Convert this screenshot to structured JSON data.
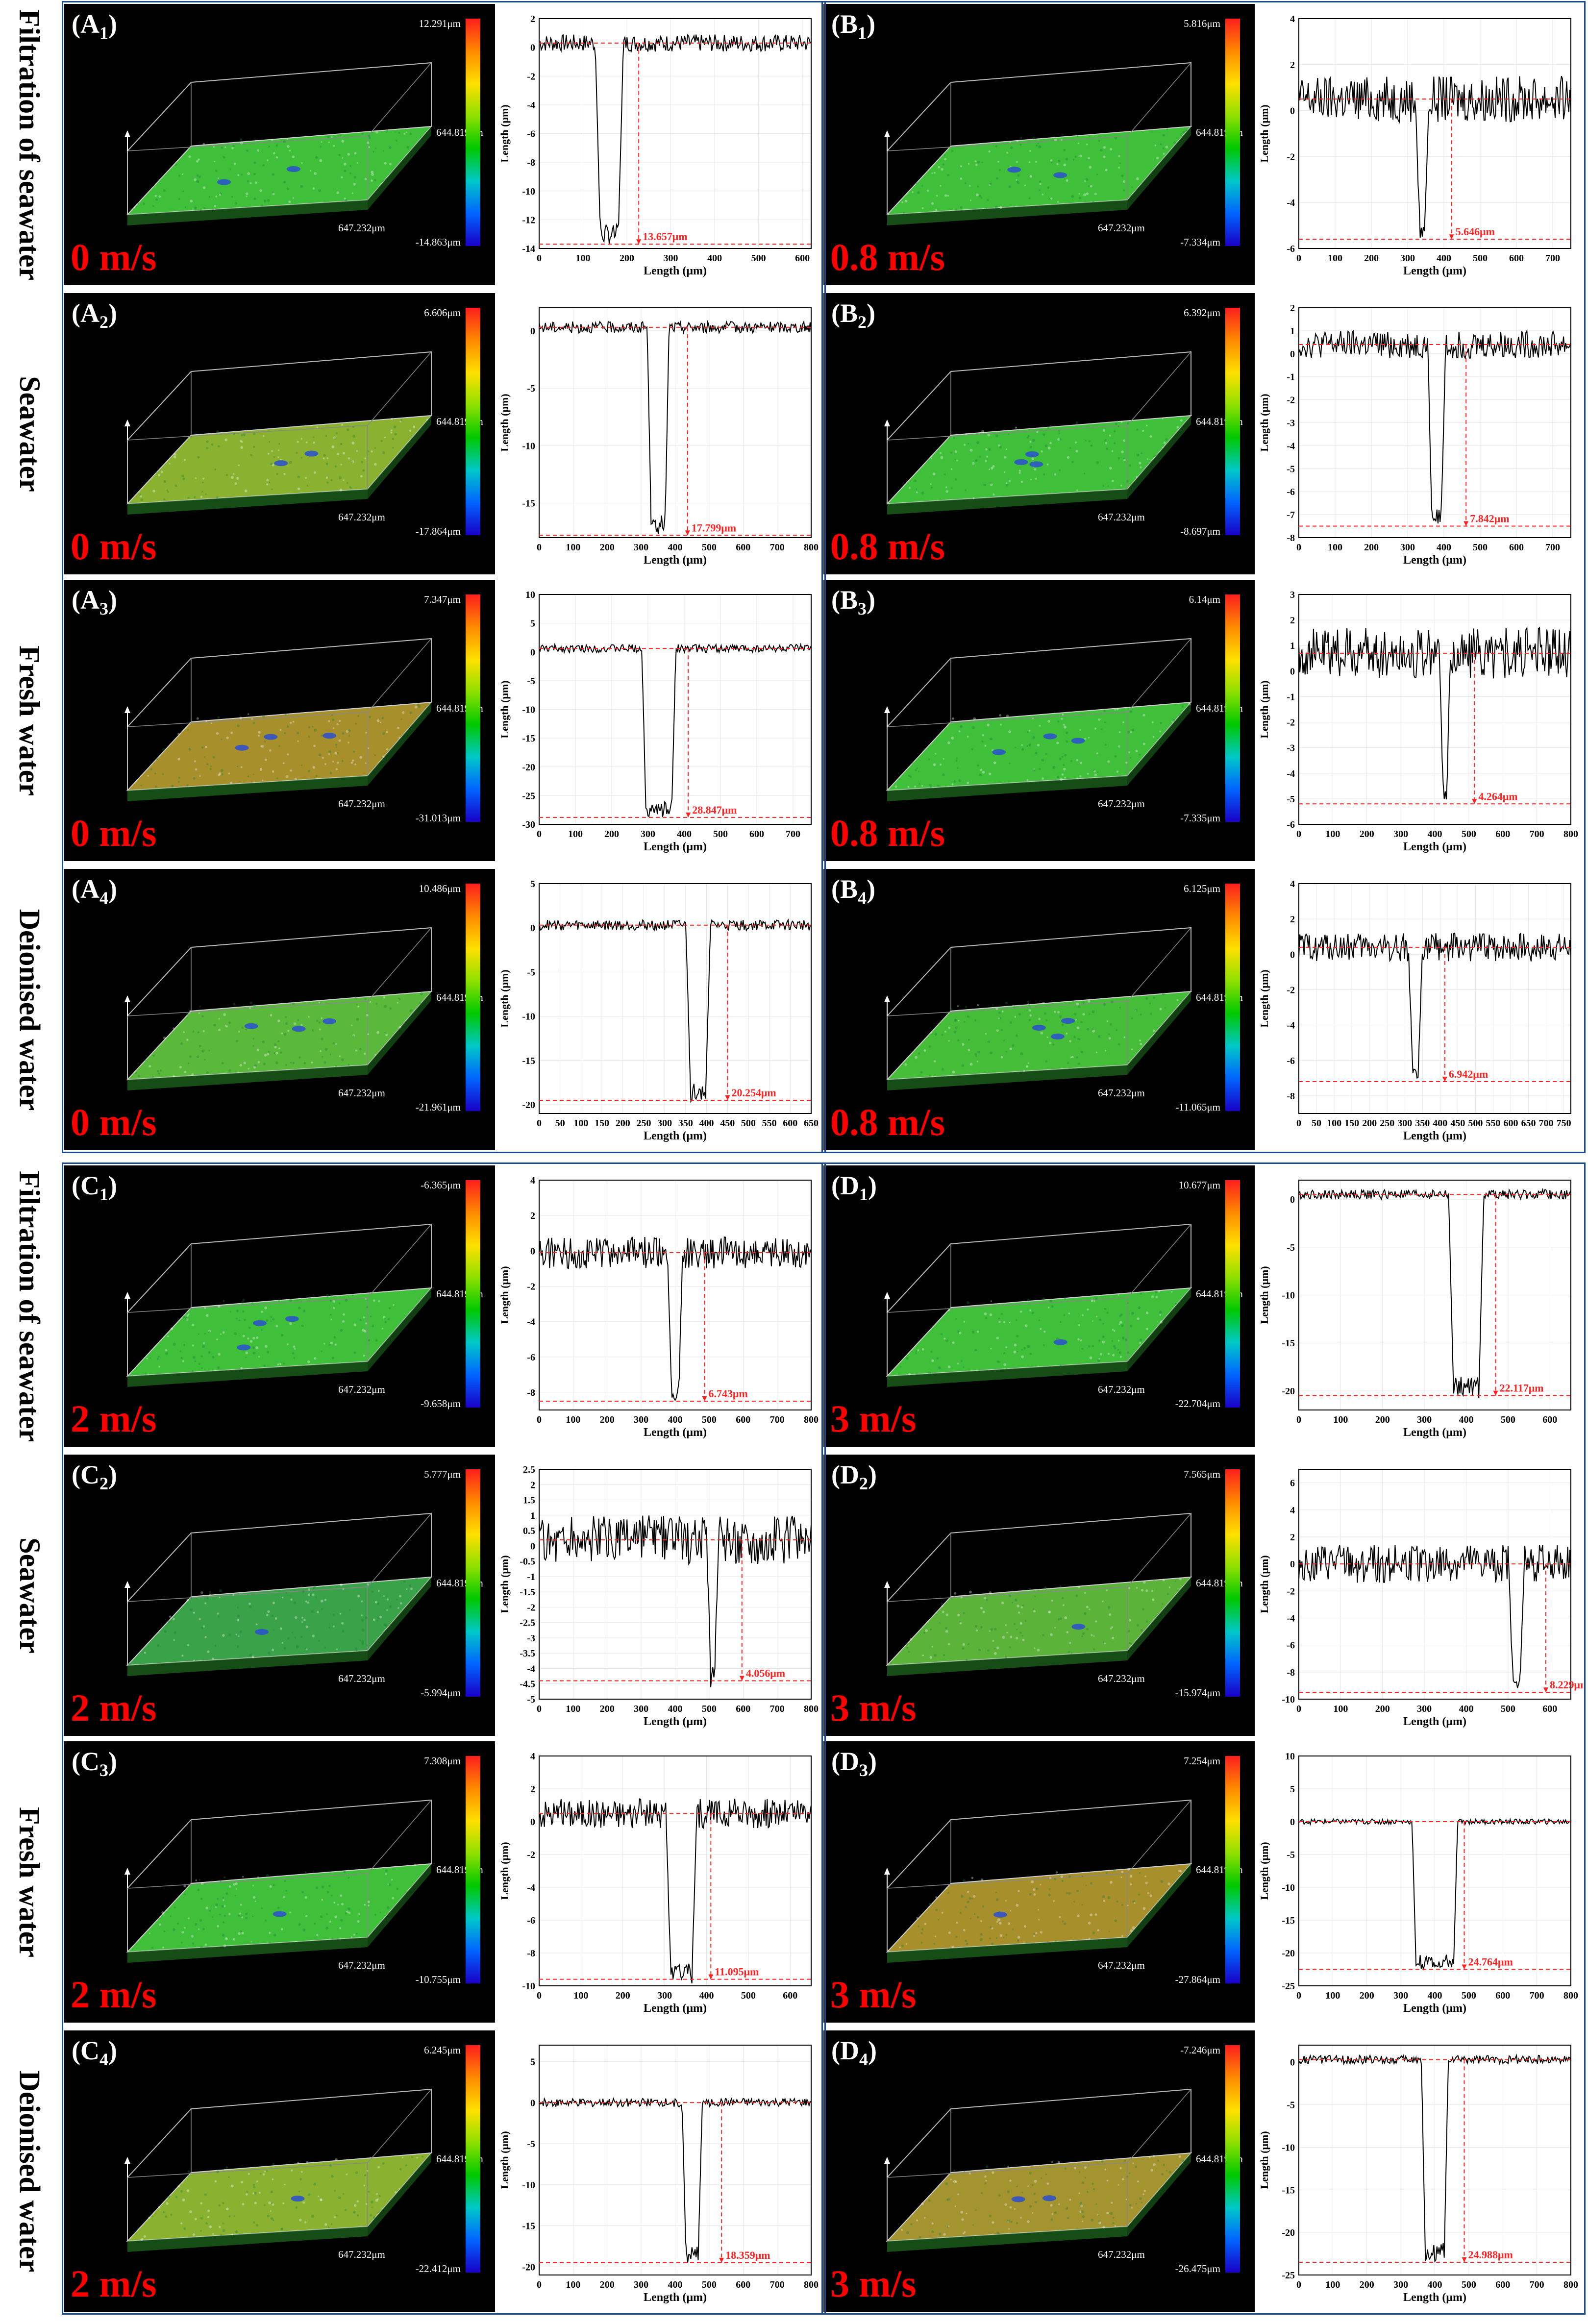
{
  "rows": [
    {
      "label": "Filtration of seawater"
    },
    {
      "label": "Seawater"
    },
    {
      "label": "Fresh water"
    },
    {
      "label": "Deionised water"
    },
    {
      "label": "Filtration of seawater"
    },
    {
      "label": "Seawater"
    },
    {
      "label": "Fresh water"
    },
    {
      "label": "Deionised water"
    }
  ],
  "panels": [
    {
      "id": "A",
      "sub": "1",
      "speed": "0 m/s",
      "cmax": "12.291μm",
      "cmin": "-14.863μm",
      "dimY": "644.819μm",
      "dimX": "647.232μm",
      "surface": "#3fbf3a",
      "mark": "13.657μm",
      "xmax": 620,
      "xstep": 100,
      "ylo": -14,
      "yhi": 2,
      "ystep": 2,
      "base": 0.3,
      "depth": -13.7,
      "pos": 160,
      "width": 40,
      "noise": 0.6,
      "yl": "Length (μm)",
      "xl": "Length (μm)"
    },
    {
      "id": "B",
      "sub": "1",
      "speed": "0.8 m/s",
      "cmax": "5.816μm",
      "cmin": "-7.334μm",
      "dimY": "644.819μm",
      "dimX": "647.232μm",
      "surface": "#3fbf3a",
      "mark": "5.646μm",
      "xmax": 750,
      "xstep": 100,
      "ylo": -6,
      "yhi": 4,
      "ystep": 2,
      "base": 0.5,
      "depth": -5.6,
      "pos": 340,
      "width": 12,
      "noise": 1.0,
      "yl": "Length (μm)",
      "xl": "Length (μm)"
    },
    {
      "id": "A",
      "sub": "2",
      "speed": "0 m/s",
      "cmax": "6.606μm",
      "cmin": "-17.864μm",
      "dimY": "644.819μm",
      "dimX": "647.232μm",
      "surface": "#8ab230",
      "mark": "17.799μm",
      "xmax": 800,
      "xstep": 100,
      "ylo": -18,
      "yhi": 2,
      "ystep": 5,
      "base": 0.3,
      "depth": -17.8,
      "pos": 350,
      "width": 40,
      "noise": 0.5,
      "yl": "Length (μm)",
      "xl": "Length (μm)"
    },
    {
      "id": "B",
      "sub": "2",
      "speed": "0.8 m/s",
      "cmax": "6.392μm",
      "cmin": "-8.697μm",
      "dimY": "644.819μm",
      "dimX": "647.232μm",
      "surface": "#3fbf3a",
      "mark": "7.842μm",
      "xmax": 750,
      "xstep": 100,
      "ylo": -8,
      "yhi": 2,
      "ystep": 1,
      "base": 0.4,
      "depth": -7.5,
      "pos": 380,
      "width": 25,
      "noise": 0.6,
      "yl": "Length (μm)",
      "xl": "Length (μm)"
    },
    {
      "id": "A",
      "sub": "3",
      "speed": "0 m/s",
      "cmax": "7.347μm",
      "cmin": "-31.013μm",
      "dimY": "644.819μm",
      "dimX": "647.232μm",
      "surface": "#a7902c",
      "mark": "28.847μm",
      "xmax": 750,
      "xstep": 100,
      "ylo": -30,
      "yhi": 10,
      "ystep": 5,
      "base": 0.6,
      "depth": -28.8,
      "pos": 330,
      "width": 70,
      "noise": 0.7,
      "yl": "Length (μm)",
      "xl": "Length (μm)"
    },
    {
      "id": "B",
      "sub": "3",
      "speed": "0.8 m/s",
      "cmax": "6.14μm",
      "cmin": "-7.335μm",
      "dimY": "644.819μm",
      "dimX": "647.232μm",
      "surface": "#3fbf3a",
      "mark": "4.264μm",
      "xmax": 800,
      "xstep": 100,
      "ylo": -6,
      "yhi": 3,
      "ystep": 1,
      "base": 0.7,
      "depth": -5.2,
      "pos": 430,
      "width": 8,
      "noise": 1.0,
      "yl": "Length (μm)",
      "xl": "Length (μm)"
    },
    {
      "id": "A",
      "sub": "4",
      "speed": "0 m/s",
      "cmax": "10.486μm",
      "cmin": "-21.961μm",
      "dimY": "644.819μm",
      "dimX": "647.232μm",
      "surface": "#5ab83a",
      "mark": "20.254μm",
      "xmax": 650,
      "xstep": 50,
      "ylo": -21,
      "yhi": 5,
      "ystep": 5,
      "base": 0.3,
      "depth": -19.5,
      "pos": 380,
      "width": 35,
      "noise": 0.6,
      "yl": "Length (μm)",
      "xl": "Length (μm)"
    },
    {
      "id": "B",
      "sub": "4",
      "speed": "0.8 m/s",
      "cmax": "6.125μm",
      "cmin": "-11.065μm",
      "dimY": "644.819μm",
      "dimX": "647.232μm",
      "surface": "#46bd38",
      "mark": "6.942μm",
      "xmax": 770,
      "xstep": 50,
      "ylo": -9,
      "yhi": 4,
      "ystep": 2,
      "base": 0.4,
      "depth": -7.2,
      "pos": 330,
      "width": 15,
      "noise": 0.8,
      "yl": "Length (μm)",
      "xl": "Length (μm)"
    },
    {
      "id": "C",
      "sub": "1",
      "speed": "2 m/s",
      "cmax": "-6.365μm",
      "cmin": "-9.658μm",
      "dimY": "644.819μm",
      "dimX": "647.232μm",
      "surface": "#3fbf3a",
      "mark": "6.743μm",
      "xmax": 800,
      "xstep": 100,
      "ylo": -9,
      "yhi": 4,
      "ystep": 2,
      "base": -0.1,
      "depth": -8.5,
      "pos": 400,
      "width": 20,
      "noise": 0.9,
      "yl": "Length (μm)",
      "xl": "Length (μm)"
    },
    {
      "id": "D",
      "sub": "1",
      "speed": "3 m/s",
      "cmax": "10.677μm",
      "cmin": "-22.704μm",
      "dimY": "644.819μm",
      "dimX": "647.232μm",
      "surface": "#3fbf3a",
      "mark": "22.117μm",
      "xmax": 650,
      "xstep": 100,
      "ylo": -22,
      "yhi": 2,
      "ystep": 5,
      "base": 0.5,
      "depth": -20.5,
      "pos": 400,
      "width": 60,
      "noise": 0.5,
      "yl": "Length (μm)",
      "xl": "Length (μm)"
    },
    {
      "id": "C",
      "sub": "2",
      "speed": "2 m/s",
      "cmax": "5.777μm",
      "cmin": "-5.994μm",
      "dimY": "644.819μm",
      "dimX": "647.232μm",
      "surface": "#3aa248",
      "mark": "4.056μm",
      "xmax": 800,
      "xstep": 100,
      "ylo": -5,
      "yhi": 2.5,
      "ystep": 0.5,
      "base": 0.2,
      "depth": -4.4,
      "pos": 510,
      "width": 10,
      "noise": 0.8,
      "yl": "Length (μm)",
      "xl": "Length (μm)"
    },
    {
      "id": "D",
      "sub": "2",
      "speed": "3 m/s",
      "cmax": "7.565μm",
      "cmin": "-15.974μm",
      "dimY": "644.819μm",
      "dimX": "647.232μm",
      "surface": "#5cb33a",
      "mark": "8.229μm",
      "xmax": 650,
      "xstep": 100,
      "ylo": -10,
      "yhi": 7,
      "ystep": 2,
      "base": 0.0,
      "depth": -9.5,
      "pos": 520,
      "width": 14,
      "noise": 1.4,
      "yl": "Length (μm)",
      "xl": "Length (μm)"
    },
    {
      "id": "C",
      "sub": "3",
      "speed": "2 m/s",
      "cmax": "7.308μm",
      "cmin": "-10.755μm",
      "dimY": "644.819μm",
      "dimX": "647.232μm",
      "surface": "#3fbf3a",
      "mark": "11.095μm",
      "xmax": 650,
      "xstep": 100,
      "ylo": -10,
      "yhi": 4,
      "ystep": 2,
      "base": 0.5,
      "depth": -9.6,
      "pos": 340,
      "width": 50,
      "noise": 0.9,
      "yl": "Length (μm)",
      "xl": "Length (μm)"
    },
    {
      "id": "D",
      "sub": "3",
      "speed": "3 m/s",
      "cmax": "7.254μm",
      "cmin": "-27.864μm",
      "dimY": "644.819μm",
      "dimX": "647.232μm",
      "surface": "#a7902c",
      "mark": "24.764μm",
      "xmax": 800,
      "xstep": 100,
      "ylo": -25,
      "yhi": 10,
      "ystep": 5,
      "base": 0.0,
      "depth": -22.5,
      "pos": 400,
      "width": 110,
      "noise": 0.4,
      "yl": "Length (μm)",
      "xl": "Length (μm)"
    },
    {
      "id": "C",
      "sub": "4",
      "speed": "2 m/s",
      "cmax": "6.245μm",
      "cmin": "-22.412μm",
      "dimY": "644.819μm",
      "dimX": "647.232μm",
      "surface": "#8ab230",
      "mark": "18.359μm",
      "xmax": 800,
      "xstep": 100,
      "ylo": -21,
      "yhi": 7,
      "ystep": 5,
      "base": 0.0,
      "depth": -19.5,
      "pos": 450,
      "width": 35,
      "noise": 0.5,
      "yl": "Length (μm)",
      "xl": "Length (μm)"
    },
    {
      "id": "D",
      "sub": "4",
      "speed": "3 m/s",
      "cmax": "-7.246μm",
      "cmin": "-26.475μm",
      "dimY": "644.819μm",
      "dimX": "647.232μm",
      "surface": "#a49430",
      "mark": "24.988μm",
      "xmax": 800,
      "xstep": 100,
      "ylo": -25,
      "yhi": 2,
      "ystep": 5,
      "base": 0.3,
      "depth": -23.5,
      "pos": 400,
      "width": 55,
      "noise": 0.5,
      "yl": "Length (μm)",
      "xl": "Length (μm)"
    }
  ],
  "chart_data": [
    {
      "type": "line",
      "title": "(A1) profile",
      "xlabel": "Length (μm)",
      "ylabel": "Length (μm)",
      "xlim": [
        0,
        620
      ],
      "ylim": [
        -14,
        2
      ],
      "annotation": "13.657μm"
    },
    {
      "type": "line",
      "title": "(B1) profile",
      "xlabel": "Length (μm)",
      "ylabel": "Length (μm)",
      "xlim": [
        0,
        750
      ],
      "ylim": [
        -6,
        4
      ],
      "annotation": "5.646μm"
    },
    {
      "type": "line",
      "title": "(A2) profile",
      "xlabel": "Length (μm)",
      "ylabel": "Length (μm)",
      "xlim": [
        0,
        800
      ],
      "ylim": [
        -18,
        2
      ],
      "annotation": "17.799μm"
    },
    {
      "type": "line",
      "title": "(B2) profile",
      "xlabel": "Length (μm)",
      "ylabel": "Length (μm)",
      "xlim": [
        0,
        750
      ],
      "ylim": [
        -8,
        2
      ],
      "annotation": "7.842μm"
    },
    {
      "type": "line",
      "title": "(A3) profile",
      "xlabel": "Length (μm)",
      "ylabel": "Length (μm)",
      "xlim": [
        0,
        750
      ],
      "ylim": [
        -30,
        10
      ],
      "annotation": "28.847μm"
    },
    {
      "type": "line",
      "title": "(B3) profile",
      "xlabel": "Length (μm)",
      "ylabel": "Length (μm)",
      "xlim": [
        0,
        800
      ],
      "ylim": [
        -6,
        3
      ],
      "annotation": "4.264μm"
    },
    {
      "type": "line",
      "title": "(A4) profile",
      "xlabel": "Length (μm)",
      "ylabel": "Length (μm)",
      "xlim": [
        0,
        650
      ],
      "ylim": [
        -21,
        5
      ],
      "annotation": "20.254μm"
    },
    {
      "type": "line",
      "title": "(B4) profile",
      "xlabel": "Length (μm)",
      "ylabel": "Length (μm)",
      "xlim": [
        0,
        770
      ],
      "ylim": [
        -9,
        4
      ],
      "annotation": "6.942μm"
    },
    {
      "type": "line",
      "title": "(C1) profile",
      "xlabel": "Length (μm)",
      "ylabel": "Length (μm)",
      "xlim": [
        0,
        800
      ],
      "ylim": [
        -9,
        4
      ],
      "annotation": "6.743μm"
    },
    {
      "type": "line",
      "title": "(D1) profile",
      "xlabel": "Length (μm)",
      "ylabel": "Length (μm)",
      "xlim": [
        0,
        650
      ],
      "ylim": [
        -22,
        2
      ],
      "annotation": "22.117μm"
    },
    {
      "type": "line",
      "title": "(C2) profile",
      "xlabel": "Length (μm)",
      "ylabel": "Length (μm)",
      "xlim": [
        0,
        800
      ],
      "ylim": [
        -5,
        2.5
      ],
      "annotation": "4.056μm"
    },
    {
      "type": "line",
      "title": "(D2) profile",
      "xlabel": "Length (μm)",
      "ylabel": "Length (μm)",
      "xlim": [
        0,
        650
      ],
      "ylim": [
        -10,
        7
      ],
      "annotation": "8.229μm"
    },
    {
      "type": "line",
      "title": "(C3) profile",
      "xlabel": "Length (μm)",
      "ylabel": "Length (μm)",
      "xlim": [
        0,
        650
      ],
      "ylim": [
        -10,
        4
      ],
      "annotation": "11.095μm"
    },
    {
      "type": "line",
      "title": "(D3) profile",
      "xlabel": "Length (μm)",
      "ylabel": "Length (μm)",
      "xlim": [
        0,
        800
      ],
      "ylim": [
        -25,
        10
      ],
      "annotation": "24.764μm"
    },
    {
      "type": "line",
      "title": "(C4) profile",
      "xlabel": "Length (μm)",
      "ylabel": "Length (μm)",
      "xlim": [
        0,
        800
      ],
      "ylim": [
        -21,
        7
      ],
      "annotation": "18.359μm"
    },
    {
      "type": "line",
      "title": "(D4) profile",
      "xlabel": "Length (μm)",
      "ylabel": "Length (μm)",
      "xlim": [
        0,
        800
      ],
      "ylim": [
        -25,
        2
      ],
      "annotation": "24.988μm"
    }
  ]
}
